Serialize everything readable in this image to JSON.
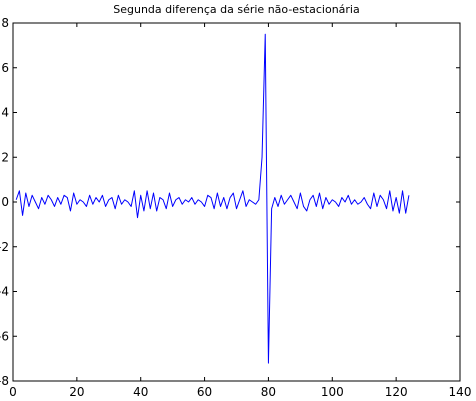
{
  "chart_data": {
    "type": "line",
    "title": "Segunda diferença da série não-estacionária",
    "xlabel": "",
    "ylabel": "",
    "xlim": [
      0,
      140
    ],
    "ylim": [
      -8,
      8
    ],
    "x_ticks": [
      "0",
      "20",
      "40",
      "60",
      "80",
      "100",
      "120",
      "140"
    ],
    "y_ticks": [
      "-8",
      "-6",
      "-4",
      "-2",
      "0",
      "2",
      "4",
      "6",
      "8"
    ],
    "grid": false,
    "line_color": "#0000ff",
    "axes_color": "#000000",
    "series": [
      {
        "x": [
          1,
          2,
          3,
          4,
          5,
          6,
          7,
          8,
          9,
          10,
          11,
          12,
          13,
          14,
          15,
          16,
          17,
          18,
          19,
          20,
          21,
          22,
          23,
          24,
          25,
          26,
          27,
          28,
          29,
          30,
          31,
          32,
          33,
          34,
          35,
          36,
          37,
          38,
          39,
          40,
          41,
          42,
          43,
          44,
          45,
          46,
          47,
          48,
          49,
          50,
          51,
          52,
          53,
          54,
          55,
          56,
          57,
          58,
          59,
          60,
          61,
          62,
          63,
          64,
          65,
          66,
          67,
          68,
          69,
          70,
          71,
          72,
          73,
          74,
          75,
          76,
          77,
          78,
          79,
          80,
          81,
          82,
          83,
          84,
          85,
          86,
          87,
          88,
          89,
          90,
          91,
          92,
          93,
          94,
          95,
          96,
          97,
          98,
          99,
          100,
          101,
          102,
          103,
          104,
          105,
          106,
          107,
          108,
          109,
          110,
          111,
          112,
          113,
          114,
          115,
          116,
          117,
          118,
          119,
          120,
          121,
          122,
          123,
          124
        ],
        "y": [
          0.1,
          0.5,
          -0.6,
          0.4,
          -0.2,
          0.3,
          0.0,
          -0.3,
          0.2,
          -0.1,
          0.3,
          0.1,
          -0.2,
          0.2,
          -0.1,
          0.3,
          0.2,
          -0.4,
          0.4,
          -0.1,
          0.1,
          0.0,
          -0.2,
          0.3,
          -0.1,
          0.2,
          0.0,
          0.3,
          -0.2,
          0.1,
          0.2,
          -0.3,
          0.3,
          -0.1,
          0.1,
          0.0,
          -0.2,
          0.5,
          -0.7,
          0.3,
          -0.4,
          0.5,
          -0.3,
          0.4,
          -0.4,
          0.2,
          0.1,
          -0.3,
          0.4,
          -0.2,
          0.1,
          0.2,
          -0.1,
          0.1,
          0.0,
          0.2,
          -0.1,
          0.1,
          0.0,
          -0.2,
          0.3,
          0.2,
          -0.3,
          0.4,
          -0.2,
          0.2,
          -0.3,
          0.2,
          0.4,
          -0.3,
          0.1,
          0.5,
          -0.2,
          0.1,
          0.0,
          -0.1,
          0.1,
          2.0,
          7.5,
          -7.2,
          -0.3,
          0.2,
          -0.2,
          0.3,
          -0.1,
          0.1,
          0.3,
          0.0,
          -0.3,
          0.4,
          -0.2,
          -0.4,
          0.1,
          0.3,
          -0.2,
          0.4,
          -0.3,
          0.2,
          -0.1,
          0.1,
          0.0,
          -0.2,
          0.2,
          0.0,
          0.3,
          -0.1,
          0.1,
          -0.1,
          0.0,
          0.2,
          -0.1,
          -0.3,
          0.4,
          -0.2,
          0.3,
          0.1,
          -0.3,
          0.5,
          -0.4,
          0.2,
          -0.5,
          0.5,
          -0.5,
          0.3
        ]
      }
    ]
  }
}
